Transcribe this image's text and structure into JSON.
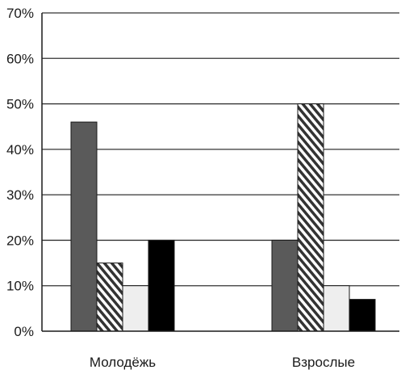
{
  "chart_data": {
    "type": "bar",
    "title": "",
    "xlabel": "",
    "ylabel": "",
    "categories": [
      "Молодёжь",
      "Взрослые"
    ],
    "ylim": [
      0,
      70
    ],
    "yticks": [
      0,
      10,
      20,
      30,
      40,
      50,
      60,
      70
    ],
    "ytick_suffix": "%",
    "grid": true,
    "legend": "none",
    "series": [
      {
        "fill": "solid-dark-gray",
        "color": "#5a5a5a",
        "values": [
          46,
          20
        ]
      },
      {
        "fill": "diagonal-stripes",
        "color": "#333333",
        "values": [
          15,
          50
        ]
      },
      {
        "fill": "solid-light-gray",
        "color": "#eeeeee",
        "values": [
          10,
          10
        ]
      },
      {
        "fill": "solid-black",
        "color": "#000000",
        "values": [
          20,
          7
        ]
      }
    ]
  }
}
